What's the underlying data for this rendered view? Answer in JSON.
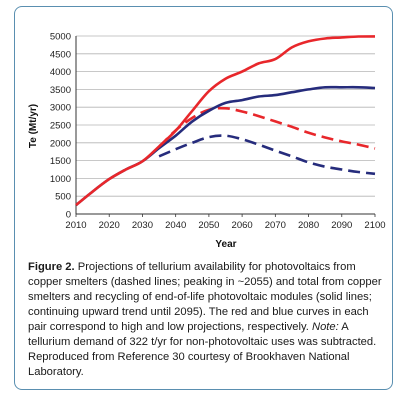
{
  "chart_data": {
    "type": "line",
    "xlabel": "Year",
    "ylabel": "Te (Mt/yr)",
    "xlim": [
      2010,
      2100
    ],
    "ylim": [
      0,
      5000
    ],
    "x_ticks": [
      "2010",
      "2020",
      "2030",
      "2040",
      "2050",
      "2060",
      "2070",
      "2080",
      "2090",
      "2100"
    ],
    "y_ticks": [
      "0",
      "500",
      "1000",
      "1500",
      "2000",
      "2500",
      "3000",
      "3500",
      "4000",
      "4500",
      "5000"
    ],
    "grid": true,
    "legend": "none",
    "series": [
      {
        "color": "#e8272b",
        "style": "solid",
        "x": [
          2010,
          2015,
          2020,
          2025,
          2030,
          2035,
          2040,
          2045,
          2050,
          2055,
          2060,
          2065,
          2070,
          2075,
          2080,
          2085,
          2090,
          2095,
          2100
        ],
        "y": [
          250,
          630,
          980,
          1250,
          1480,
          1900,
          2340,
          2900,
          3450,
          3800,
          4000,
          4230,
          4350,
          4680,
          4850,
          4930,
          4960,
          4985,
          4990
        ]
      },
      {
        "color": "#262c7c",
        "style": "solid",
        "x": [
          2010,
          2015,
          2020,
          2025,
          2030,
          2035,
          2040,
          2045,
          2050,
          2055,
          2060,
          2065,
          2070,
          2075,
          2080,
          2085,
          2090,
          2095,
          2100
        ],
        "y": [
          250,
          630,
          980,
          1250,
          1480,
          1850,
          2200,
          2600,
          2900,
          3120,
          3200,
          3300,
          3340,
          3420,
          3500,
          3560,
          3560,
          3560,
          3540
        ]
      },
      {
        "color": "#e8272b",
        "style": "dashed",
        "x": [
          2035,
          2040,
          2045,
          2050,
          2055,
          2060,
          2065,
          2070,
          2075,
          2080,
          2085,
          2090,
          2095,
          2100
        ],
        "y": [
          1880,
          2350,
          2700,
          2930,
          2970,
          2880,
          2750,
          2600,
          2450,
          2280,
          2150,
          2040,
          1950,
          1840
        ]
      },
      {
        "color": "#262c7c",
        "style": "dashed",
        "x": [
          2035,
          2040,
          2045,
          2050,
          2055,
          2060,
          2065,
          2070,
          2075,
          2080,
          2085,
          2090,
          2095,
          2100
        ],
        "y": [
          1620,
          1820,
          2000,
          2160,
          2200,
          2100,
          1950,
          1780,
          1620,
          1450,
          1330,
          1250,
          1180,
          1130
        ]
      }
    ]
  },
  "caption": {
    "label": "Figure 2.",
    "text_before_note": " Projections of tellurium availability for photovoltaics from copper smelters (dashed lines; peaking in ~2055) and total from copper smelters and recycling of end-of-life photovoltaic modules (solid lines; continuing upward trend until 2095). The red and blue curves in each pair correspond to high and low projections, respectively. ",
    "note_label": "Note:",
    "text_after_note": " A tellurium demand of 322 t/yr for non-photovoltaic uses was subtracted. Reproduced from Reference 30 courtesy of Brookhaven National Laboratory."
  },
  "colors": {
    "panel_border": "#5a8fb0",
    "high_projection": "#e8272b",
    "low_projection": "#262c7c"
  }
}
